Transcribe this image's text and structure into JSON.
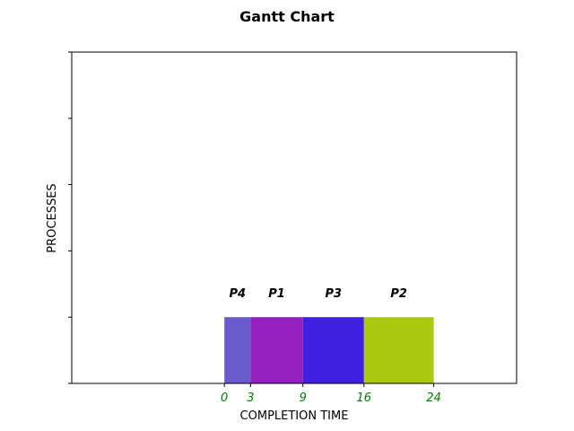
{
  "chart_data": {
    "type": "bar",
    "orientation": "horizontal",
    "title": "Gantt Chart",
    "xlabel": "COMPLETION TIME",
    "ylabel": "PROCESSES",
    "xlim": [
      -17.5,
      33.5
    ],
    "ylim": [
      0,
      5
    ],
    "y_ticks": [
      0,
      1,
      2,
      3,
      4,
      5
    ],
    "x_ticks": [
      0,
      3,
      9,
      16,
      24
    ],
    "x_tick_color": "#008000",
    "grid": false,
    "bar_y": [
      0,
      1
    ],
    "segments": [
      {
        "label": "P4",
        "start": 0,
        "end": 3,
        "color": "#6a5acd"
      },
      {
        "label": "P1",
        "start": 3,
        "end": 9,
        "color": "#9420be"
      },
      {
        "label": "P3",
        "start": 9,
        "end": 16,
        "color": "#4020e0"
      },
      {
        "label": "P2",
        "start": 16,
        "end": 24,
        "color": "#acc912"
      }
    ]
  }
}
